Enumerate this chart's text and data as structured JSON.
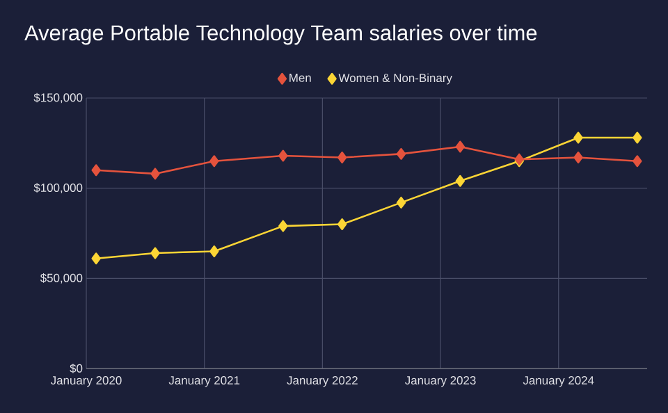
{
  "chart_data": {
    "type": "line",
    "title": "Average Portable Technology Team salaries over time",
    "x": [
      "2020-02",
      "2020-08",
      "2021-02",
      "2021-09",
      "2022-03",
      "2022-09",
      "2023-03",
      "2023-09",
      "2024-03",
      "2024-09"
    ],
    "series": [
      {
        "name": "Men",
        "color": "#e5533d",
        "values": [
          110000,
          108000,
          115000,
          118000,
          117000,
          119000,
          123000,
          116000,
          117000,
          115000
        ]
      },
      {
        "name": "Women & Non-Binary",
        "color": "#fcd535",
        "values": [
          61000,
          64000,
          65000,
          79000,
          80000,
          92000,
          104000,
          115000,
          128000,
          128000
        ]
      }
    ],
    "xlim": [
      "2020-01",
      "2024-10"
    ],
    "xticks": [
      {
        "value": "2020-01",
        "label": "January 2020"
      },
      {
        "value": "2021-01",
        "label": "January 2021"
      },
      {
        "value": "2022-01",
        "label": "January 2022"
      },
      {
        "value": "2023-01",
        "label": "January 2023"
      },
      {
        "value": "2024-01",
        "label": "January 2024"
      }
    ],
    "ylim": [
      0,
      150000
    ],
    "yticks": [
      {
        "value": 0,
        "label": "$0"
      },
      {
        "value": 50000,
        "label": "$50,000"
      },
      {
        "value": 100000,
        "label": "$100,000"
      },
      {
        "value": 150000,
        "label": "$150,000"
      }
    ],
    "grid": true,
    "legend": "top",
    "marker": "diamond",
    "line_style": "solid"
  }
}
